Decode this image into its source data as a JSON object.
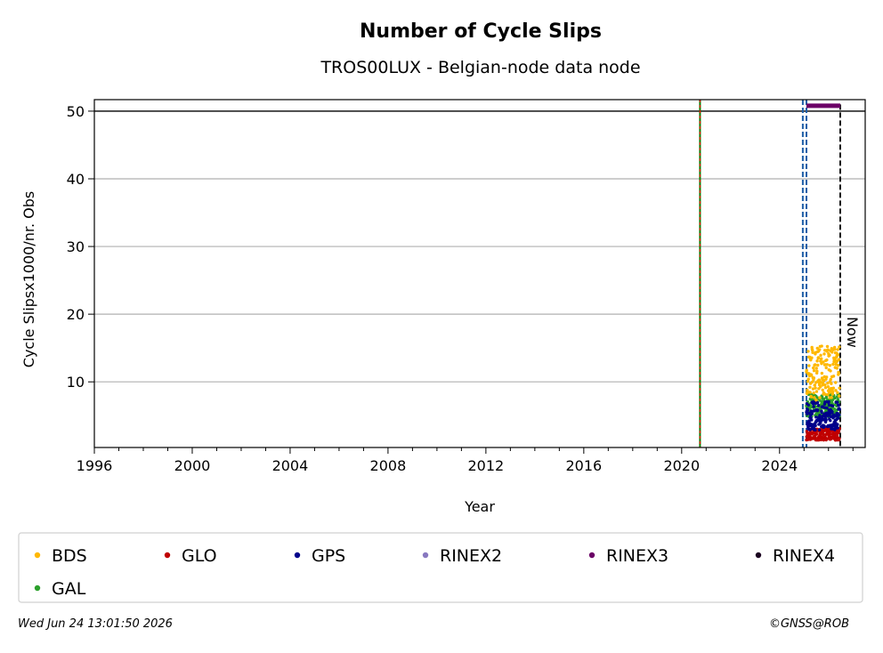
{
  "chart_data": {
    "type": "scatter",
    "title": "Number of Cycle Slips",
    "subtitle": "TROS00LUX - Belgian-node data node",
    "xlabel": "Year",
    "ylabel": "Cycle Slipsx1000/nr. Obs",
    "xlim": [
      1996,
      2027.5
    ],
    "ylim": [
      0.3,
      51.7
    ],
    "x_ticks": [
      1996,
      2000,
      2004,
      2008,
      2012,
      2016,
      2020,
      2024
    ],
    "y_ticks": [
      10,
      20,
      30,
      40,
      50
    ],
    "grid": "horizontal",
    "reference_line_y": 50,
    "vertical_lines": [
      {
        "x": 2020.75,
        "style": "green-red-dashed"
      },
      {
        "x": 2024.95,
        "style": "blue-dashed"
      },
      {
        "x": 2025.1,
        "style": "blue-dashed"
      },
      {
        "x": 2026.48,
        "style": "black-dashed",
        "label": "Now"
      }
    ],
    "rinex3_bar": {
      "x_start": 2025.1,
      "x_end": 2026.48,
      "y": 50.8
    },
    "series": [
      {
        "name": "BDS",
        "color": "#ffb800",
        "x_range": [
          2025.1,
          2026.45
        ],
        "y_min": 6,
        "y_max": 17
      },
      {
        "name": "GLO",
        "color": "#c00000",
        "x_range": [
          2025.1,
          2026.45
        ],
        "y_min": 1,
        "y_max": 3.5
      },
      {
        "name": "GPS",
        "color": "#00008b",
        "x_range": [
          2025.1,
          2026.45
        ],
        "y_min": 2,
        "y_max": 8
      },
      {
        "name": "RINEX2",
        "color": "#8878c0"
      },
      {
        "name": "RINEX3",
        "color": "#6b0066"
      },
      {
        "name": "RINEX4",
        "color": "#1a0020"
      },
      {
        "name": "GAL",
        "color": "#2ca02c",
        "x_range": [
          2025.1,
          2026.45
        ],
        "y_min": 4,
        "y_max": 9
      }
    ]
  },
  "footer": {
    "timestamp": "Wed Jun 24 13:01:50 2026",
    "copyright": "©GNSS@ROB"
  }
}
